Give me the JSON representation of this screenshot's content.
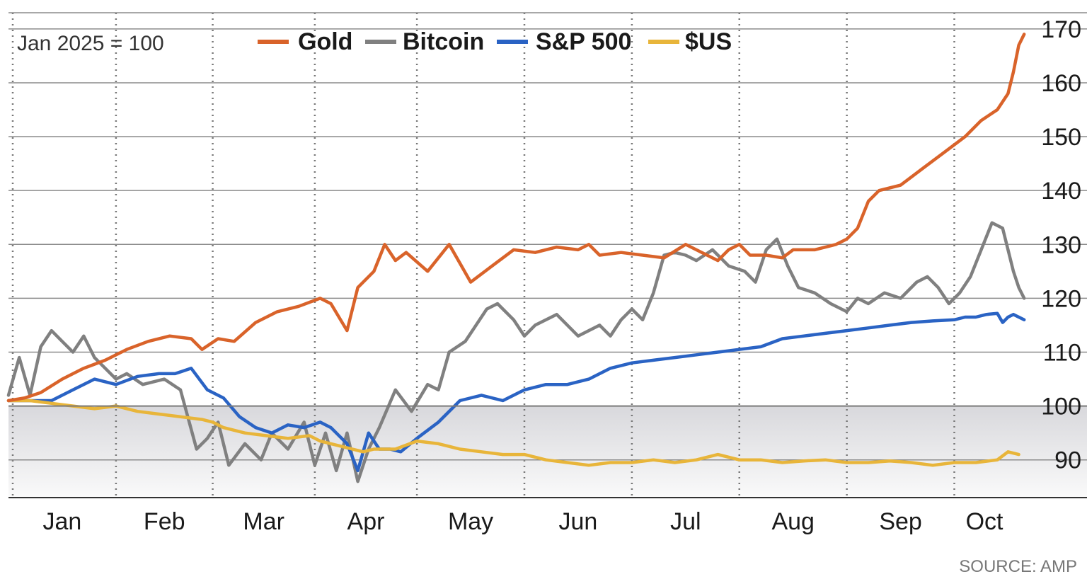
{
  "chart_data": {
    "type": "line",
    "base_note": "Jan 2025 = 100",
    "source": "SOURCE: AMP",
    "ylim": [
      83,
      173
    ],
    "yticks": [
      90,
      100,
      110,
      120,
      130,
      140,
      150,
      160,
      170
    ],
    "baseline": 100,
    "months": [
      "Jan",
      "Feb",
      "Mar",
      "Apr",
      "May",
      "Jun",
      "Jul",
      "Aug",
      "Sep",
      "Oct"
    ],
    "x_unit": "months since 1 Jan 2025",
    "month_divisions": [
      1.0,
      1.9,
      2.85,
      3.8,
      4.8,
      5.8,
      6.8,
      7.8,
      8.8
    ],
    "colors": {
      "Gold": "#d9632a",
      "Bitcoin": "#808080",
      "S&P 500": "#2a63c4",
      "$US": "#e8b53a"
    },
    "series": [
      {
        "name": "Gold",
        "x": [
          0,
          0.15,
          0.3,
          0.5,
          0.7,
          0.9,
          1.1,
          1.3,
          1.5,
          1.7,
          1.8,
          1.95,
          2.1,
          2.3,
          2.5,
          2.7,
          2.9,
          3.0,
          3.15,
          3.25,
          3.4,
          3.5,
          3.6,
          3.7,
          3.9,
          4.1,
          4.2,
          4.3,
          4.5,
          4.7,
          4.9,
          5.1,
          5.3,
          5.4,
          5.5,
          5.7,
          5.9,
          6.1,
          6.3,
          6.5,
          6.6,
          6.7,
          6.8,
          6.9,
          7.05,
          7.2,
          7.3,
          7.5,
          7.7,
          7.8,
          7.9,
          8.0,
          8.1,
          8.3,
          8.5,
          8.7,
          8.9,
          9.05,
          9.2,
          9.3,
          9.35,
          9.4,
          9.45
        ],
        "values": [
          101,
          101.5,
          102.5,
          105,
          107,
          108.5,
          110.5,
          112,
          113,
          112.5,
          110.5,
          112.5,
          112,
          115.5,
          117.5,
          118.5,
          120,
          119,
          114,
          122,
          125,
          130,
          127,
          128.5,
          125,
          130,
          126.5,
          123,
          126,
          129,
          128.5,
          129.5,
          129,
          130,
          128,
          128.5,
          128,
          127.5,
          130,
          128,
          127,
          129,
          130,
          128,
          128,
          127.5,
          129,
          129,
          130,
          131,
          133,
          138,
          140,
          141,
          144,
          147,
          150,
          153,
          155,
          158,
          162,
          167,
          169
        ]
      },
      {
        "name": "Bitcoin",
        "x": [
          0,
          0.1,
          0.2,
          0.3,
          0.4,
          0.5,
          0.6,
          0.7,
          0.8,
          0.9,
          1.0,
          1.1,
          1.25,
          1.45,
          1.6,
          1.75,
          1.85,
          1.95,
          2.05,
          2.2,
          2.35,
          2.45,
          2.6,
          2.75,
          2.85,
          2.95,
          3.05,
          3.15,
          3.25,
          3.35,
          3.45,
          3.6,
          3.75,
          3.9,
          4.0,
          4.1,
          4.25,
          4.35,
          4.45,
          4.55,
          4.7,
          4.8,
          4.9,
          5.1,
          5.3,
          5.5,
          5.6,
          5.7,
          5.8,
          5.9,
          6.0,
          6.1,
          6.2,
          6.3,
          6.4,
          6.55,
          6.7,
          6.85,
          6.95,
          7.05,
          7.15,
          7.25,
          7.35,
          7.5,
          7.65,
          7.8,
          7.9,
          8.0,
          8.15,
          8.3,
          8.45,
          8.55,
          8.65,
          8.75,
          8.85,
          8.95,
          9.05,
          9.15,
          9.25,
          9.35,
          9.4,
          9.45
        ],
        "values": [
          102,
          109,
          102,
          111,
          114,
          112,
          110,
          113,
          109,
          107,
          105,
          106,
          104,
          105,
          103,
          92,
          94,
          97,
          89,
          93,
          90,
          95,
          92,
          97,
          89,
          95,
          88,
          95,
          86,
          92,
          96,
          103,
          99,
          104,
          103,
          110,
          112,
          115,
          118,
          119,
          116,
          113,
          115,
          117,
          113,
          115,
          113,
          116,
          118,
          116,
          121,
          128,
          128.5,
          128,
          127,
          129,
          126,
          125,
          123,
          129,
          131,
          126,
          122,
          121,
          119,
          117.5,
          120,
          119,
          121,
          120,
          123,
          124,
          122,
          119,
          121,
          124,
          129,
          134,
          133,
          125,
          122,
          120
        ]
      },
      {
        "name": "S&P 500",
        "x": [
          0,
          0.2,
          0.4,
          0.6,
          0.8,
          1.0,
          1.2,
          1.4,
          1.55,
          1.7,
          1.85,
          2.0,
          2.15,
          2.3,
          2.45,
          2.6,
          2.75,
          2.9,
          3.0,
          3.05,
          3.15,
          3.25,
          3.35,
          3.45,
          3.55,
          3.65,
          3.8,
          4.0,
          4.2,
          4.4,
          4.6,
          4.8,
          5.0,
          5.2,
          5.4,
          5.6,
          5.8,
          6.0,
          6.2,
          6.4,
          6.6,
          6.8,
          7.0,
          7.2,
          7.4,
          7.6,
          7.8,
          8.0,
          8.2,
          8.4,
          8.6,
          8.8,
          8.9,
          9.0,
          9.1,
          9.2,
          9.25,
          9.3,
          9.35,
          9.4,
          9.45
        ],
        "values": [
          101,
          101,
          101,
          103,
          105,
          104,
          105.5,
          106,
          106,
          107,
          103,
          101.5,
          98,
          96,
          95,
          96.5,
          96,
          97,
          96,
          95,
          93,
          88,
          95,
          92,
          92,
          91.5,
          94,
          97,
          101,
          102,
          101,
          103,
          104,
          104,
          105,
          107,
          108,
          108.5,
          109,
          109.5,
          110,
          110.5,
          111,
          112.5,
          113,
          113.5,
          114,
          114.5,
          115,
          115.5,
          115.8,
          116,
          116.5,
          116.5,
          117,
          117.2,
          115.5,
          116.5,
          117,
          116.5,
          116
        ]
      },
      {
        "name": "$US",
        "x": [
          0,
          0.2,
          0.4,
          0.6,
          0.8,
          1.0,
          1.2,
          1.4,
          1.6,
          1.8,
          1.9,
          2.0,
          2.2,
          2.4,
          2.6,
          2.8,
          2.9,
          3.0,
          3.1,
          3.2,
          3.3,
          3.4,
          3.6,
          3.8,
          4.0,
          4.1,
          4.2,
          4.4,
          4.6,
          4.8,
          5.0,
          5.2,
          5.4,
          5.6,
          5.8,
          6.0,
          6.2,
          6.4,
          6.6,
          6.8,
          7.0,
          7.2,
          7.4,
          7.6,
          7.8,
          8.0,
          8.2,
          8.4,
          8.6,
          8.8,
          9.0,
          9.2,
          9.3,
          9.4
        ],
        "values": [
          101,
          101,
          100.5,
          100,
          99.5,
          100,
          99,
          98.5,
          98,
          97.5,
          97,
          96,
          95,
          94.5,
          94,
          94.5,
          93.5,
          93,
          92.5,
          92,
          91.5,
          92,
          92,
          93.5,
          93,
          92.5,
          92,
          91.5,
          91,
          91,
          90,
          89.5,
          89,
          89.5,
          89.5,
          90,
          89.5,
          90,
          91,
          90,
          90,
          89.5,
          89.8,
          90,
          89.5,
          89.5,
          89.8,
          89.5,
          89,
          89.5,
          89.5,
          90,
          91.5,
          91
        ]
      }
    ]
  }
}
